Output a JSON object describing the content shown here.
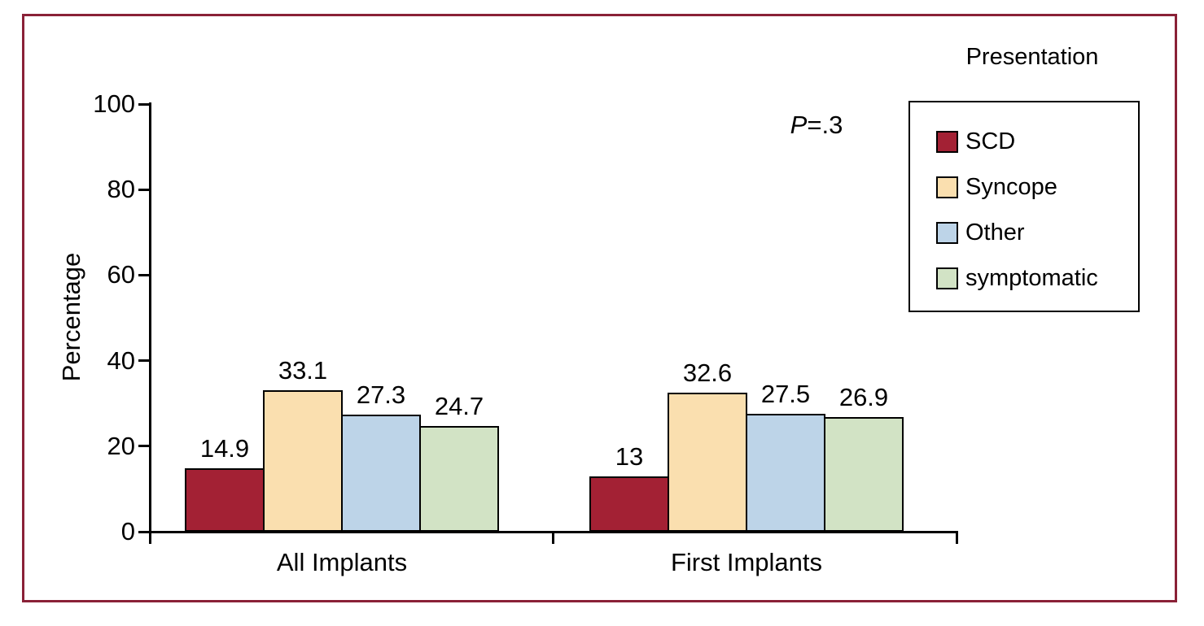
{
  "figure": {
    "border_color": "#8a2137",
    "background": "#ffffff"
  },
  "chart_data": {
    "type": "bar",
    "title": "",
    "xlabel": "",
    "ylabel": "Percentage",
    "ylim": [
      0,
      100
    ],
    "yticks": [
      0,
      20,
      40,
      60,
      80,
      100
    ],
    "grid": false,
    "bar_outline": "#000000",
    "categories": [
      "All Implants",
      "First Implants"
    ],
    "series": [
      {
        "name": "SCD",
        "color": "#a32134",
        "values": [
          14.9,
          13
        ]
      },
      {
        "name": "Syncope",
        "color": "#fadfaf",
        "values": [
          33.1,
          32.6
        ]
      },
      {
        "name": "Other",
        "color": "#bdd4e8",
        "values": [
          27.3,
          27.5
        ]
      },
      {
        "name": "symptomatic",
        "color": "#d2e3c5",
        "values": [
          24.7,
          26.9
        ]
      }
    ],
    "bar_labels": [
      [
        "14.9",
        "33.1",
        "27.3",
        "24.7"
      ],
      [
        "13",
        "32.6",
        "27.5",
        "26.9"
      ]
    ],
    "annotation": {
      "italic": "P",
      "rest": "=.3"
    },
    "legend": {
      "title": "Presentation",
      "position": "top-right",
      "entries": [
        "SCD",
        "Syncope",
        "Other",
        "symptomatic"
      ]
    }
  }
}
